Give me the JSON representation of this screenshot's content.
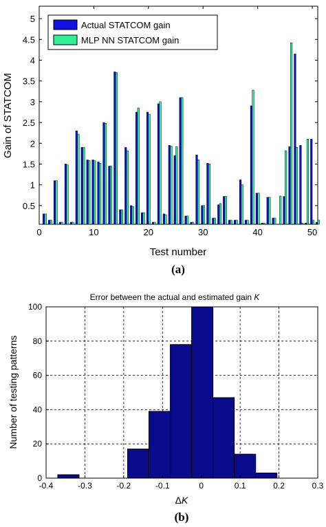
{
  "panels": {
    "a_label": "(a)",
    "b_label": "(b)"
  },
  "chart_data": [
    {
      "type": "bar",
      "title": "",
      "xlabel": "Test number",
      "ylabel": "Gain of STATCOM",
      "xlim": [
        0,
        51
      ],
      "ylim": [
        0.05,
        5.3
      ],
      "xticks": [
        "0",
        "10",
        "20",
        "30",
        "40",
        "50"
      ],
      "yticks": [
        "0.5",
        "1",
        "1.5",
        "2",
        "2.5",
        "3",
        "3.5",
        "4",
        "4.5",
        "5"
      ],
      "legend_position": "top-left",
      "series": [
        {
          "name": "Actual STATCOM gain",
          "color": "#1010e0",
          "values": [
            0.3,
            0.15,
            1.1,
            0.1,
            1.5,
            0.1,
            2.3,
            1.9,
            1.6,
            1.6,
            1.55,
            2.5,
            1.45,
            3.72,
            0.4,
            1.9,
            0.5,
            2.75,
            0.33,
            2.75,
            0.1,
            2.95,
            0.3,
            1.95,
            1.7,
            3.1,
            0.25,
            0.1,
            1.72,
            0.5,
            1.52,
            0.2,
            0.52,
            0.72,
            0.15,
            0.15,
            1.12,
            0.15,
            2.9,
            0.8,
            0.08,
            0.7,
            0.2,
            0.05,
            0.72,
            1.92,
            4.15,
            1.95,
            0.08,
            2.1,
            0.1
          ]
        },
        {
          "name": "MLP NN STATCOM gain",
          "color": "#33ee99",
          "values": [
            0.3,
            0.15,
            1.1,
            0.1,
            1.48,
            0.1,
            2.22,
            1.9,
            1.58,
            1.58,
            1.52,
            2.48,
            1.45,
            3.7,
            0.4,
            1.82,
            0.48,
            2.85,
            0.33,
            2.7,
            0.1,
            3.0,
            0.28,
            1.93,
            1.92,
            3.1,
            0.25,
            0.1,
            1.6,
            0.5,
            1.5,
            0.2,
            0.55,
            0.72,
            0.15,
            0.15,
            1.0,
            0.15,
            3.28,
            0.8,
            0.08,
            0.7,
            0.2,
            0.73,
            1.82,
            4.42,
            1.9,
            0.08,
            2.1,
            0.15,
            0.15
          ]
        }
      ]
    },
    {
      "type": "bar",
      "subtype": "histogram",
      "title": "Error between the actual and estimated gain K",
      "title_text": "Error between the actual and estimated gain ",
      "title_italic": "K",
      "xlabel": "ΔK",
      "xlabel_delta": "Δ",
      "xlabel_italic": "K",
      "ylabel": "Number of testing patterns",
      "xlim": [
        -0.4,
        0.3
      ],
      "ylim": [
        0,
        100
      ],
      "xticks": [
        "-0.4",
        "-0.3",
        "-0.2",
        "-0.1",
        "0",
        "0.1",
        "0.2",
        "0.3"
      ],
      "yticks": [
        "0",
        "20",
        "40",
        "60",
        "80",
        "100"
      ],
      "grid": true,
      "bar_color": "#0a0a8c",
      "bins": [
        {
          "x0": -0.37,
          "x1": -0.315,
          "count": 2
        },
        {
          "x0": -0.315,
          "x1": -0.26,
          "count": 0
        },
        {
          "x0": -0.26,
          "x1": -0.205,
          "count": 0
        },
        {
          "x0": -0.19,
          "x1": -0.135,
          "count": 17
        },
        {
          "x0": -0.135,
          "x1": -0.08,
          "count": 39
        },
        {
          "x0": -0.08,
          "x1": -0.025,
          "count": 78
        },
        {
          "x0": -0.025,
          "x1": 0.03,
          "count": 100
        },
        {
          "x0": 0.03,
          "x1": 0.085,
          "count": 47
        },
        {
          "x0": 0.085,
          "x1": 0.14,
          "count": 14
        },
        {
          "x0": 0.14,
          "x1": 0.195,
          "count": 3
        }
      ]
    }
  ]
}
